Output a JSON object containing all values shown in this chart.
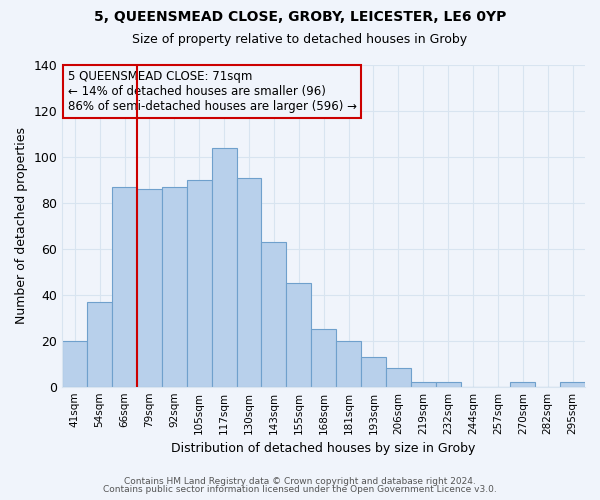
{
  "title1": "5, QUEENSMEAD CLOSE, GROBY, LEICESTER, LE6 0YP",
  "title2": "Size of property relative to detached houses in Groby",
  "xlabel": "Distribution of detached houses by size in Groby",
  "ylabel": "Number of detached properties",
  "categories": [
    "41sqm",
    "54sqm",
    "66sqm",
    "79sqm",
    "92sqm",
    "105sqm",
    "117sqm",
    "130sqm",
    "143sqm",
    "155sqm",
    "168sqm",
    "181sqm",
    "193sqm",
    "206sqm",
    "219sqm",
    "232sqm",
    "244sqm",
    "257sqm",
    "270sqm",
    "282sqm",
    "295sqm"
  ],
  "values": [
    20,
    37,
    87,
    86,
    87,
    90,
    104,
    91,
    63,
    45,
    25,
    20,
    13,
    8,
    2,
    2,
    0,
    0,
    2,
    0,
    2
  ],
  "bar_color": "#b8d0eb",
  "bar_edge_color": "#6fa0cc",
  "vline_x_index": 2,
  "vline_color": "#cc0000",
  "annotation_title": "5 QUEENSMEAD CLOSE: 71sqm",
  "annotation_line1": "← 14% of detached houses are smaller (96)",
  "annotation_line2": "86% of semi-detached houses are larger (596) →",
  "box_edge_color": "#cc0000",
  "ylim": [
    0,
    140
  ],
  "yticks": [
    0,
    20,
    40,
    60,
    80,
    100,
    120,
    140
  ],
  "footer1": "Contains HM Land Registry data © Crown copyright and database right 2024.",
  "footer2": "Contains public sector information licensed under the Open Government Licence v3.0.",
  "background_color": "#f0f4fb",
  "grid_color": "#d8e4f0"
}
